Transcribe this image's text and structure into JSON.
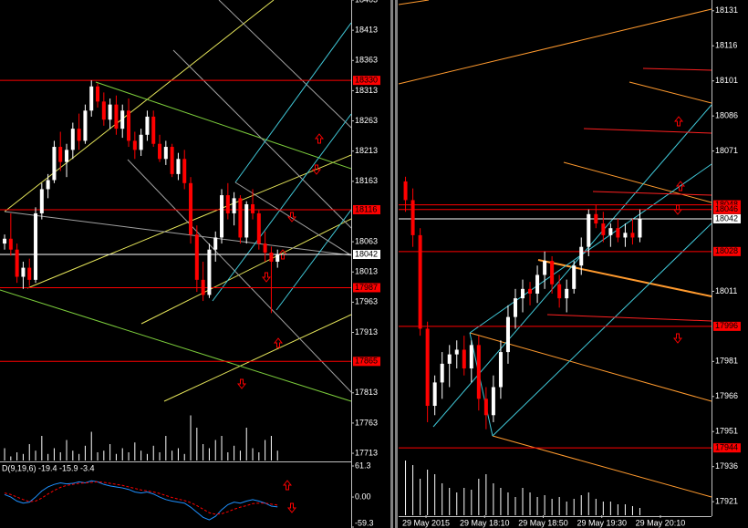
{
  "chart_data": [
    {
      "type": "candlestick",
      "color_up": "#ffffff",
      "color_down": "#ff0000",
      "x": [
        0,
        1,
        2,
        3,
        4,
        5,
        6,
        7,
        8,
        9,
        10,
        11,
        12,
        13,
        14,
        15,
        16,
        17,
        18,
        19,
        20,
        21,
        22,
        23,
        24,
        25,
        26,
        27,
        28,
        29,
        30,
        31,
        32,
        33,
        34,
        35,
        36,
        37,
        38,
        39,
        40,
        41,
        42,
        43,
        44
      ],
      "xlim": [
        -0.74,
        55.88
      ],
      "open": [
        18060,
        18068,
        18050,
        18005,
        18020,
        18000,
        18110,
        18150,
        18165,
        18220,
        18195,
        18215,
        18250,
        18230,
        18280,
        18320,
        18295,
        18265,
        18290,
        18250,
        18280,
        18230,
        18215,
        18240,
        18270,
        18225,
        18200,
        18220,
        18175,
        18200,
        18160,
        18075,
        18000,
        17975,
        18050,
        18070,
        18140,
        18110,
        18135,
        18070,
        18125,
        18110,
        18060,
        18045,
        18030
      ],
      "high": [
        18075,
        18110,
        18060,
        18030,
        18035,
        18120,
        18160,
        18175,
        18230,
        18245,
        18225,
        18260,
        18275,
        18290,
        18330,
        18325,
        18310,
        18300,
        18305,
        18290,
        18300,
        18245,
        18250,
        18280,
        18280,
        18240,
        18230,
        18225,
        18210,
        18215,
        18170,
        18090,
        18030,
        18060,
        18080,
        18150,
        18160,
        18145,
        18140,
        18130,
        18150,
        18115,
        18080,
        18055,
        18050
      ],
      "low": [
        18050,
        18040,
        17995,
        17985,
        17990,
        17995,
        18100,
        18135,
        18160,
        18180,
        18170,
        18200,
        18215,
        18225,
        18270,
        18285,
        18255,
        18250,
        18240,
        18235,
        18220,
        18200,
        18205,
        18230,
        18220,
        18195,
        18190,
        18170,
        18165,
        18150,
        18060,
        17980,
        17965,
        17970,
        18030,
        18060,
        18100,
        18090,
        18060,
        18060,
        18100,
        18050,
        18030,
        17945,
        18020
      ],
      "close": [
        18068,
        18050,
        18005,
        18020,
        18000,
        18110,
        18150,
        18165,
        18220,
        18195,
        18215,
        18250,
        18230,
        18280,
        18320,
        18295,
        18265,
        18290,
        18250,
        18280,
        18230,
        18215,
        18240,
        18270,
        18225,
        18200,
        18220,
        18175,
        18200,
        18160,
        18075,
        18000,
        17975,
        18050,
        18070,
        18140,
        18110,
        18135,
        18070,
        18125,
        18110,
        18060,
        18045,
        18030,
        18042
      ],
      "volume": [
        15,
        5,
        10,
        8,
        20,
        12,
        30,
        8,
        15,
        10,
        25,
        12,
        8,
        18,
        35,
        10,
        12,
        20,
        8,
        15,
        10,
        22,
        12,
        8,
        18,
        10,
        30,
        12,
        15,
        8,
        55,
        40,
        20,
        15,
        25,
        30,
        10,
        18,
        12,
        40,
        15,
        10,
        25,
        30,
        12
      ],
      "volume_lim": [
        0,
        100
      ],
      "volume_color": "#ffffff",
      "ylim": [
        17701,
        18463
      ],
      "yticks": [
        18463,
        18413,
        18363,
        18313,
        18263,
        18213,
        18163,
        18063,
        18013,
        17963,
        17913,
        17813,
        17763,
        17713
      ],
      "levels": [
        {
          "value": 18330,
          "color": "#ff0000"
        },
        {
          "value": 18116,
          "color": "#ff0000"
        },
        {
          "value": 18042,
          "color": "#ffffff"
        },
        {
          "value": 17987,
          "color": "#ff0000"
        },
        {
          "value": 17865,
          "color": "#ff0000"
        }
      ]
    },
    {
      "type": "candlestick",
      "color_up": "#ffffff",
      "color_down": "#ff0000",
      "x": [
        1036,
        1041,
        1046,
        1051,
        1056,
        1061,
        1066,
        1071,
        1076,
        1081,
        1086,
        1091,
        1096,
        1101,
        1106,
        1111,
        1116,
        1121,
        1126,
        1131,
        1136,
        1141,
        1146,
        1151,
        1156,
        1161,
        1166,
        1171,
        1176,
        1181,
        1186,
        1191,
        1196
      ],
      "xlim": [
        1031.3,
        1244.9
      ],
      "xticks": [
        {
          "value": 1050,
          "label": "29 May 2015"
        },
        {
          "value": 1090,
          "label": "29 May 18:10"
        },
        {
          "value": 1130,
          "label": "29 May 18:50"
        },
        {
          "value": 1170,
          "label": "29 May 19:30"
        },
        {
          "value": 1210,
          "label": "29 May 20:10"
        }
      ],
      "open": [
        18058,
        18050,
        18035,
        17995,
        17962,
        17972,
        17980,
        17984,
        17986,
        17978,
        17988,
        17965,
        17958,
        17970,
        17985,
        18000,
        18008,
        18012,
        18010,
        18018,
        18024,
        18014,
        18008,
        18012,
        18022,
        18030,
        18044,
        18040,
        18035,
        18038,
        18034,
        18036,
        18034
      ],
      "high": [
        18060,
        18055,
        18038,
        17998,
        17975,
        17985,
        17988,
        17990,
        17992,
        17990,
        17992,
        17970,
        17975,
        17990,
        18005,
        18012,
        18016,
        18015,
        18022,
        18028,
        18026,
        18018,
        18016,
        18024,
        18034,
        18046,
        18048,
        18045,
        18040,
        18042,
        18040,
        18042,
        18046
      ],
      "low": [
        18045,
        18030,
        17992,
        17955,
        17958,
        17965,
        17970,
        17978,
        17975,
        17972,
        17960,
        17952,
        17955,
        17965,
        17980,
        17995,
        18002,
        18005,
        18006,
        18012,
        18010,
        18004,
        18002,
        18010,
        18018,
        18026,
        18038,
        18032,
        18030,
        18032,
        18030,
        18031,
        18032
      ],
      "close": [
        18050,
        18035,
        17995,
        17962,
        17972,
        17980,
        17984,
        17986,
        17978,
        17988,
        17965,
        17958,
        17970,
        17985,
        18000,
        18008,
        18012,
        18010,
        18018,
        18024,
        18014,
        18008,
        18012,
        18022,
        18030,
        18044,
        18040,
        18035,
        18038,
        18034,
        18036,
        18034,
        18042
      ],
      "volume": [
        60,
        55,
        40,
        50,
        45,
        35,
        30,
        25,
        30,
        28,
        40,
        45,
        35,
        30,
        25,
        20,
        30,
        25,
        20,
        22,
        18,
        20,
        15,
        18,
        22,
        25,
        18,
        15,
        15,
        12,
        12,
        10,
        8
      ],
      "volume_lim": [
        0,
        100
      ],
      "volume_color": "#ffffff",
      "ylim": [
        17915.2,
        18135.6
      ],
      "yticks": [
        18131,
        18116,
        18101,
        18086,
        18071,
        18011,
        17981,
        17966,
        17951,
        17936,
        17921
      ],
      "levels": [
        {
          "value": 18048,
          "color": "#ff0000"
        },
        {
          "value": 18046,
          "color": "#ff0000"
        },
        {
          "value": 18042,
          "color": "#ffffff"
        },
        {
          "value": 18028,
          "color": "#ff0000"
        },
        {
          "value": 17996,
          "color": "#ff0000"
        },
        {
          "value": 17944,
          "color": "#ff0000"
        }
      ]
    },
    {
      "type": "line",
      "title": "D(9,19,6) -19.4 -15.9 -3.4",
      "series": [
        {
          "color": "#1e90ff",
          "dash": false,
          "values": [
            5,
            0,
            -8,
            -12,
            -10,
            0,
            12,
            20,
            25,
            28,
            26,
            27,
            30,
            28,
            32,
            30,
            25,
            22,
            20,
            18,
            15,
            10,
            8,
            10,
            6,
            0,
            -5,
            -8,
            -10,
            -12,
            -20,
            -30,
            -40,
            -45,
            -38,
            -25,
            -15,
            -10,
            -12,
            -8,
            -5,
            -8,
            -12,
            -18,
            -19.4
          ]
        },
        {
          "color": "#ff0000",
          "dash": true,
          "values": [
            8,
            5,
            0,
            -5,
            -9,
            -8,
            -2,
            6,
            13,
            19,
            23,
            25,
            27,
            28,
            29,
            30,
            29,
            27,
            25,
            23,
            20,
            17,
            14,
            12,
            10,
            7,
            3,
            -1,
            -4,
            -7,
            -11,
            -17,
            -24,
            -31,
            -34,
            -33,
            -29,
            -24,
            -20,
            -17,
            -13,
            -12,
            -12,
            -14,
            -15.9
          ]
        }
      ],
      "ylim": [
        -59.3,
        61.3
      ],
      "yticks": [
        61.3,
        {
          "value": 0,
          "label": "0.00"
        },
        -59.3
      ]
    }
  ]
}
